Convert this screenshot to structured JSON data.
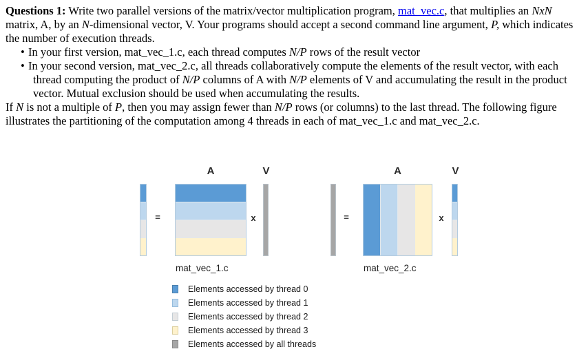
{
  "document": {
    "link_color": "#0000ee",
    "intro": {
      "segments": [
        {
          "text": "Questions 1:",
          "style": "bold"
        },
        {
          "text": " Write two parallel versions of the matrix/vector multiplication program, "
        },
        {
          "text": "mat_vec.c",
          "style": "link",
          "name": "mat-vec-link",
          "interactable": true
        },
        {
          "text": ", that multiplies an "
        },
        {
          "text": "NxN",
          "style": "italic"
        },
        {
          "text": " matrix, A, by an "
        },
        {
          "text": "N",
          "style": "italic"
        },
        {
          "text": "-dimensional vector, V. Your programs should accept a second command line argument, "
        },
        {
          "text": "P,",
          "style": "italic"
        },
        {
          "text": " which indicates the number of execution threads."
        }
      ]
    },
    "bullets": [
      {
        "segments": [
          {
            "text": "In your first version, mat_vec_1.c, each thread computes "
          },
          {
            "text": "N/P",
            "style": "italic"
          },
          {
            "text": " rows of the result vector"
          }
        ]
      },
      {
        "segments": [
          {
            "text": "In your second version, mat_vec_2.c, all threads collaboratively compute the elements of the result vector, with each thread computing the product of "
          },
          {
            "text": "N/P",
            "style": "italic"
          },
          {
            "text": " columns of A with "
          },
          {
            "text": "N/P",
            "style": "italic"
          },
          {
            "text": " elements of V and accumulating the result in the product vector. Mutual exclusion should be used when accumulating the results."
          }
        ]
      }
    ],
    "closing": {
      "segments": [
        {
          "text": "If "
        },
        {
          "text": "N",
          "style": "italic"
        },
        {
          "text": " is not a multiple of "
        },
        {
          "text": "P",
          "style": "italic"
        },
        {
          "text": ", then you may assign fewer than "
        },
        {
          "text": "N/P",
          "style": "italic"
        },
        {
          "text": " rows (or columns) to the last thread. The following figure illustrates the partitioning of the computation among 4 threads in each of mat_vec_1.c and mat_vec_2.c."
        }
      ]
    }
  },
  "figure": {
    "colors": {
      "thread0": "#5b9bd5",
      "thread1": "#bdd7ee",
      "thread2": "#e7e6e6",
      "thread3": "#fff2cc",
      "all_threads": "#a6a6a6"
    },
    "diagrams": [
      {
        "caption": "mat_vec_1.c",
        "matrix_label": "A",
        "vector_label": "V",
        "equals_sign": "=",
        "multiply_sign": "x",
        "partition": "rows"
      },
      {
        "caption": "mat_vec_2.c",
        "matrix_label": "A",
        "vector_label": "V",
        "equals_sign": "=",
        "multiply_sign": "x",
        "partition": "columns"
      }
    ],
    "legend": [
      {
        "label": "Elements accessed by thread 0"
      },
      {
        "label": "Elements accessed by thread 1"
      },
      {
        "label": "Elements accessed by thread 2"
      },
      {
        "label": "Elements accessed by thread 3"
      },
      {
        "label": "Elements accessed by all threads"
      }
    ]
  }
}
